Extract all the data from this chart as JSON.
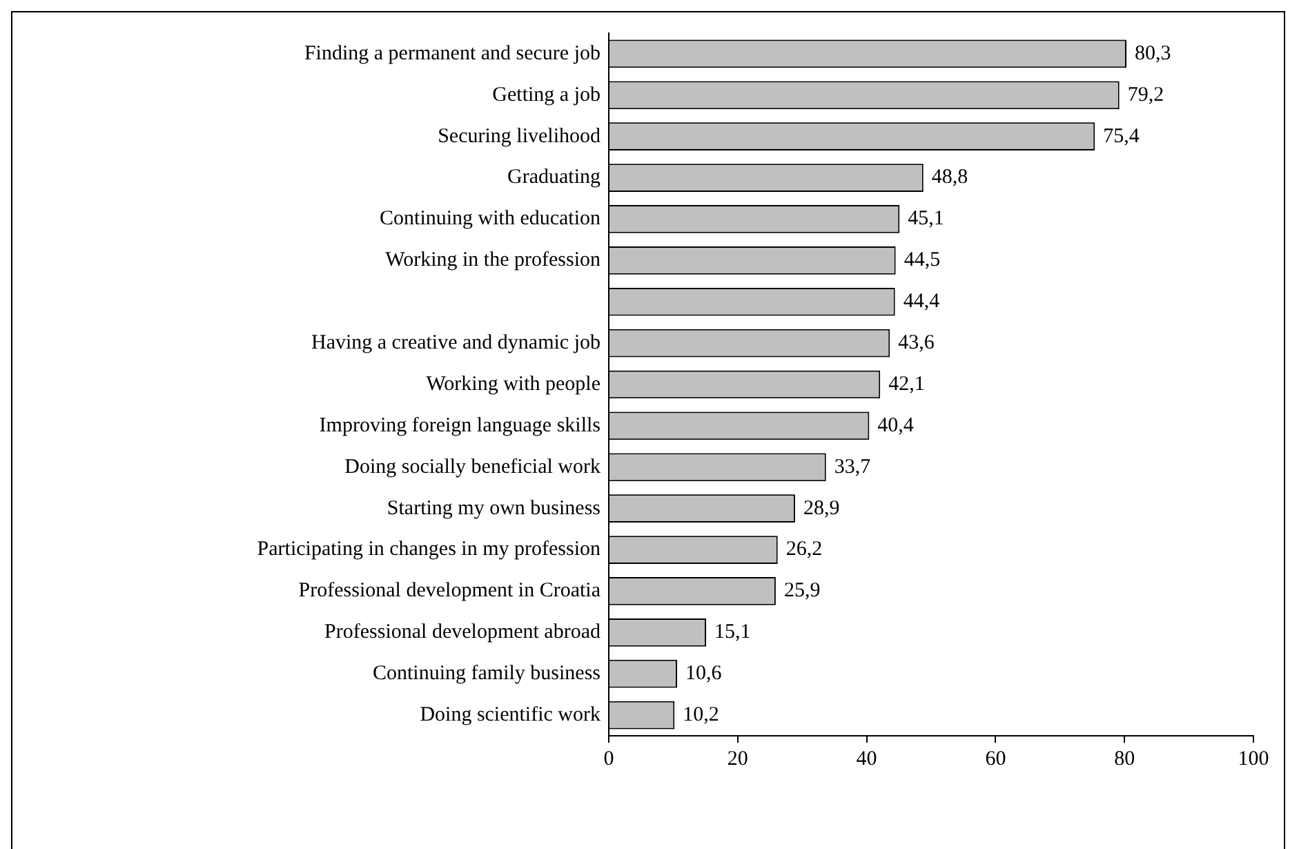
{
  "chart_data": {
    "type": "bar",
    "orientation": "horizontal",
    "categories": [
      "Finding a permanent and secure job",
      "Getting a job",
      "Securing livelihood",
      "Graduating",
      "Continuing with education",
      "Working in the profession",
      null,
      "Having a creative and dynamic job",
      "Working with people",
      "Improving foreign language skills",
      "Doing socially beneficial work",
      "Starting my own business",
      "Participating in changes in my profession",
      "Professional development in Croatia",
      "Professional development abroad",
      "Continuing family business",
      "Doing scientific work"
    ],
    "values": [
      80.3,
      79.2,
      75.4,
      48.8,
      45.1,
      44.5,
      44.4,
      43.6,
      42.1,
      40.4,
      33.7,
      28.9,
      26.2,
      25.9,
      15.1,
      10.6,
      10.2
    ],
    "value_labels": [
      "80,3",
      "79,2",
      "75,4",
      "48,8",
      "45,1",
      "44,5",
      "44,4",
      "43,6",
      "42,1",
      "40,4",
      "33,7",
      "28,9",
      "26,2",
      "25,9",
      "15,1",
      "10,6",
      "10,2"
    ],
    "color": "#c0c0c0",
    "xlim": [
      0,
      100
    ],
    "xticks": [
      0,
      20,
      40,
      60,
      80,
      100
    ],
    "grid": false,
    "legend": false
  }
}
